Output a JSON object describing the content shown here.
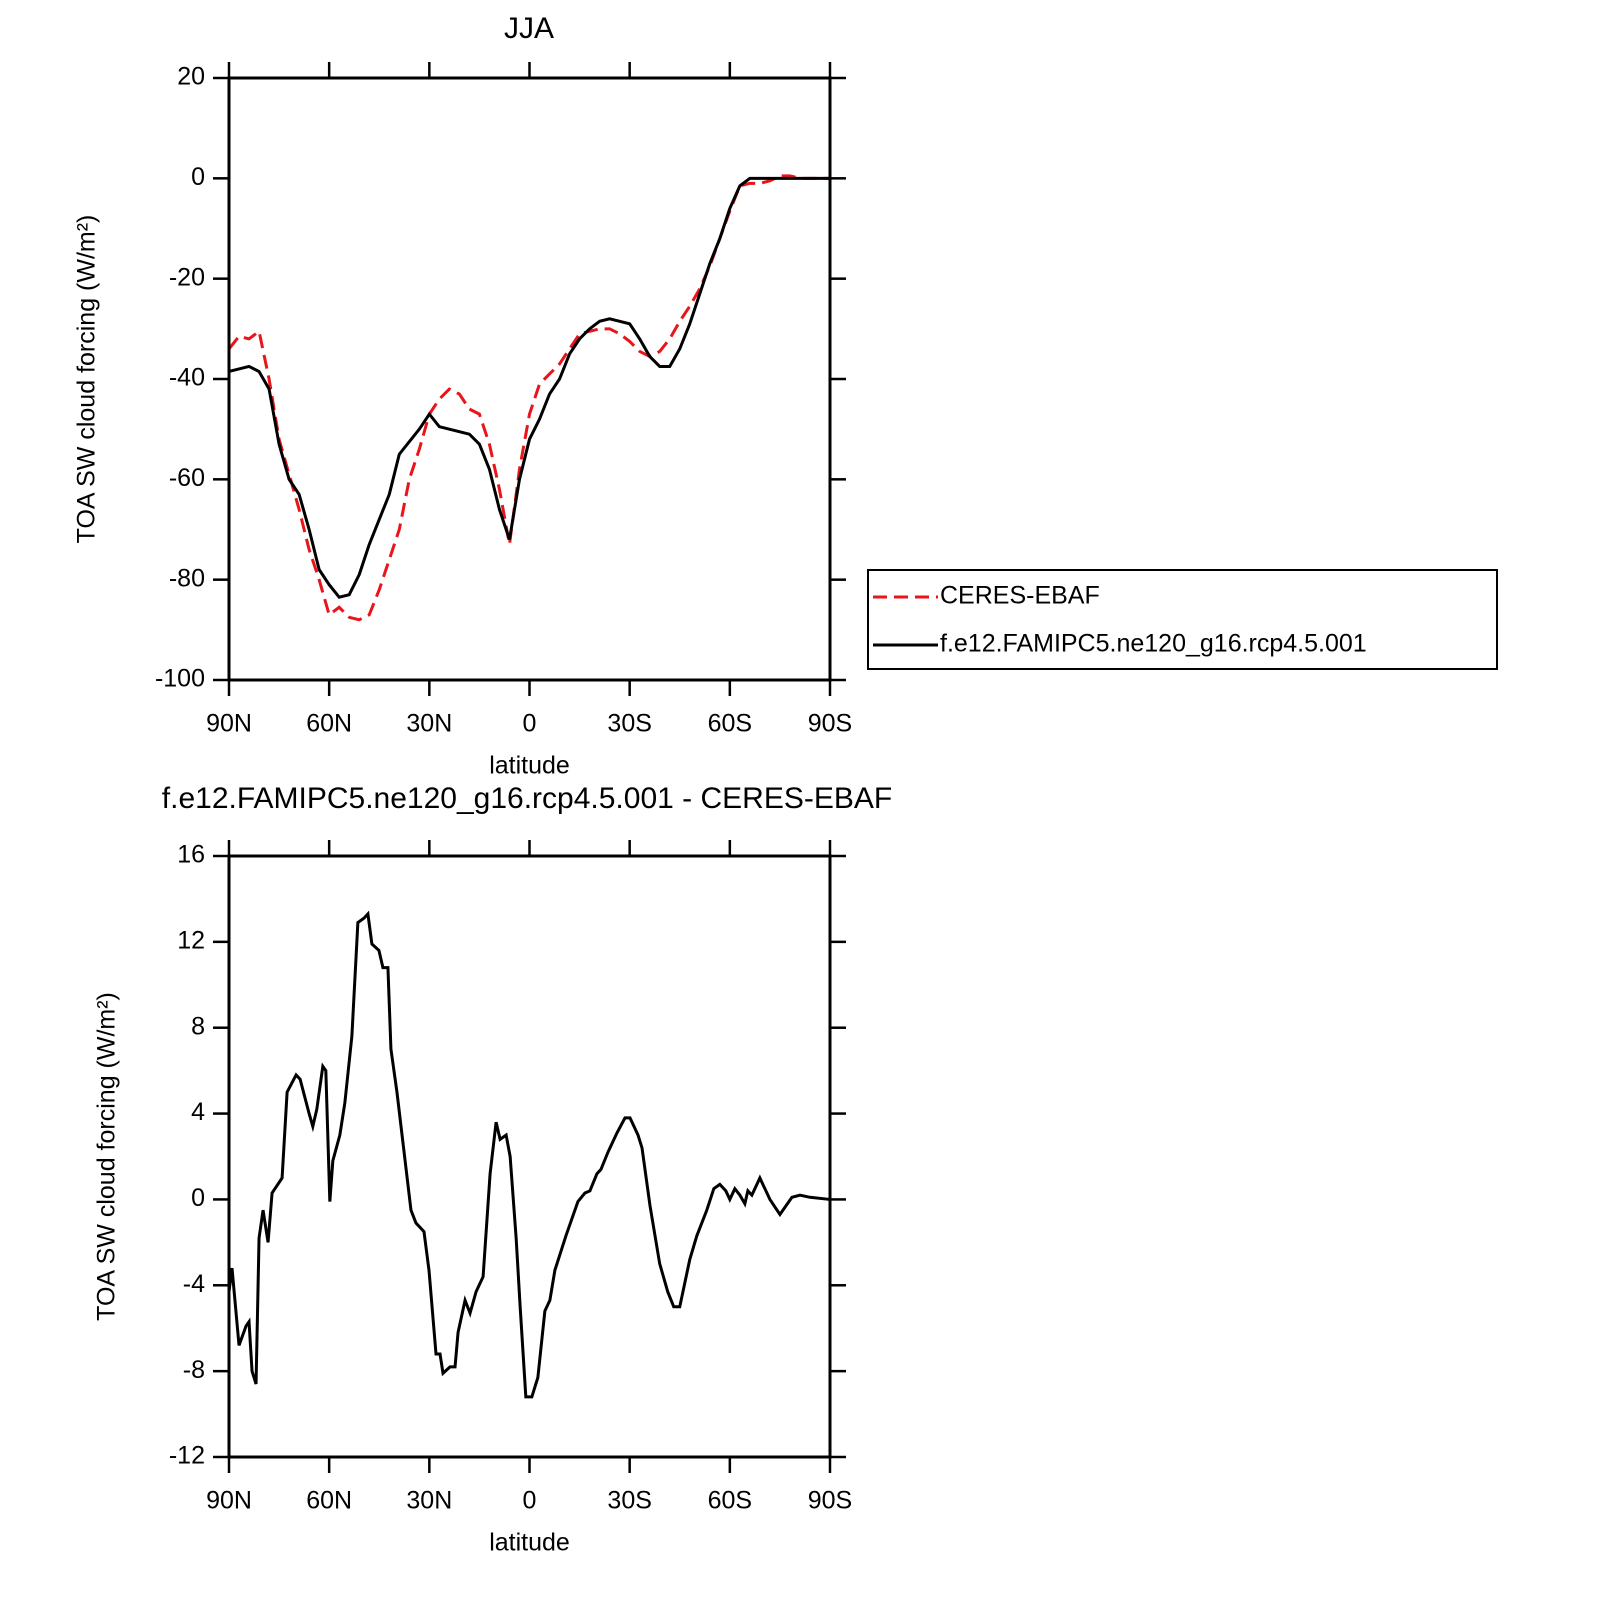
{
  "chart_data": [
    {
      "type": "line",
      "title": "JJA",
      "xlabel": "latitude",
      "ylabel": "TOA SW cloud forcing (W/m²)",
      "xlim": [
        90,
        -90
      ],
      "xticks": [
        {
          "value": 90,
          "label": "90N"
        },
        {
          "value": 60,
          "label": "60N"
        },
        {
          "value": 30,
          "label": "30N"
        },
        0,
        {
          "value": -30,
          "label": "30S"
        },
        {
          "value": -60,
          "label": "60S"
        },
        {
          "value": -90,
          "label": "90S"
        }
      ],
      "ylim": [
        -100,
        20
      ],
      "yticks": [
        -100,
        -80,
        -60,
        -40,
        -20,
        0,
        20
      ],
      "legend": "right",
      "x": [
        90,
        87,
        84,
        81,
        78,
        75,
        72,
        69,
        66,
        63,
        60,
        57,
        54,
        51,
        48,
        45,
        42,
        39,
        36,
        33,
        30,
        27,
        24,
        21,
        18,
        15,
        12,
        9,
        6,
        3,
        0,
        -3,
        -6,
        -9,
        -12,
        -15,
        -18,
        -21,
        -24,
        -27,
        -30,
        -33,
        -36,
        -39,
        -42,
        -45,
        -48,
        -51,
        -54,
        -57,
        -60,
        -63,
        -66,
        -69,
        -72,
        -75,
        -78,
        -81,
        -84,
        -87,
        -90
      ],
      "series": [
        {
          "name": "CERES-EBAF",
          "color": "#e8151b",
          "line_style": "dashed",
          "values": [
            -34,
            -31.5,
            -32,
            -30.5,
            -40,
            -52,
            -59,
            -66,
            -74,
            -80,
            -87,
            -85.5,
            -87.5,
            -88,
            -87,
            -82,
            -76,
            -70,
            -60,
            -54,
            -47,
            -44,
            -42,
            -43,
            -46,
            -47,
            -53,
            -62,
            -73,
            -58,
            -47,
            -41,
            -39,
            -37,
            -34,
            -31,
            -30.5,
            -30,
            -30,
            -31,
            -32.5,
            -34.5,
            -35.5,
            -34.5,
            -32,
            -28.5,
            -25.5,
            -22,
            -17.5,
            -12,
            -6.5,
            -1.5,
            -1,
            -1,
            -0.5,
            0.5,
            0.5,
            0,
            0,
            0,
            0
          ]
        },
        {
          "name": "f.e12.FAMIPC5.ne120_g16.rcp4.5.001",
          "color": "#000000",
          "line_style": "solid",
          "values": [
            -38.5,
            -38,
            -37.5,
            -38.5,
            -42,
            -53,
            -60,
            -63,
            -70,
            -78,
            -81,
            -83.5,
            -83,
            -79,
            -73,
            -68,
            -63,
            -55,
            -52.5,
            -50,
            -47,
            -49.5,
            -50,
            -50.5,
            -51,
            -53,
            -58,
            -66,
            -72,
            -60,
            -52,
            -48,
            -43,
            -40,
            -35,
            -32,
            -30,
            -28.5,
            -28,
            -28.5,
            -29,
            -32,
            -35.5,
            -37.5,
            -37.5,
            -34,
            -29,
            -23,
            -17,
            -12,
            -6,
            -1.5,
            0,
            0,
            0,
            0,
            0,
            0,
            0,
            0,
            0
          ]
        }
      ]
    },
    {
      "type": "line",
      "title": "f.e12.FAMIPC5.ne120_g16.rcp4.5.001 - CERES-EBAF",
      "xlabel": "latitude",
      "ylabel": "TOA SW cloud forcing (W/m²)",
      "xlim": [
        90,
        -90
      ],
      "xticks": [
        {
          "value": 90,
          "label": "90N"
        },
        {
          "value": 60,
          "label": "60N"
        },
        {
          "value": 30,
          "label": "30N"
        },
        0,
        {
          "value": -30,
          "label": "30S"
        },
        {
          "value": -60,
          "label": "60S"
        },
        {
          "value": -90,
          "label": "90S"
        }
      ],
      "ylim": [
        -12,
        16
      ],
      "yticks": [
        -12,
        -8,
        -4,
        0,
        4,
        8,
        12,
        16
      ],
      "x": [
        90,
        89.1,
        87,
        84.9,
        84,
        83.1,
        81.9,
        81,
        79.8,
        78.3,
        77.1,
        74.1,
        72.6,
        69.9,
        68.7,
        66,
        64.9,
        63.7,
        61.9,
        61,
        59.8,
        58.9,
        56.8,
        55.3,
        53.2,
        51.4,
        49.6,
        48.4,
        47.2,
        45.1,
        43.9,
        42.4,
        41.5,
        39.7,
        35.5,
        34,
        31.6,
        30.1,
        28,
        26.8,
        25.9,
        23.8,
        22.3,
        21.4,
        19.3,
        17.8,
        16,
        13.9,
        11.8,
        10,
        8.8,
        7,
        5.8,
        4,
        2.8,
        1.1,
        -0.7,
        -2.5,
        -4.6,
        -6.1,
        -7.6,
        -10.9,
        -14.5,
        -16.6,
        -18.1,
        -20.2,
        -21.4,
        -23.5,
        -26.2,
        -28.6,
        -30.1,
        -32.5,
        -33.7,
        -36.1,
        -39,
        -41.4,
        -43.2,
        -45,
        -48,
        -50.1,
        -53.1,
        -55.2,
        -57,
        -58.8,
        -60,
        -61.5,
        -63,
        -64.5,
        -65.4,
        -66.6,
        -69,
        -72,
        -75,
        -76.8,
        -78.6,
        -81,
        -84,
        -90
      ],
      "color": "#000000",
      "values": [
        -4.3,
        -3.2,
        -6.8,
        -5.9,
        -5.7,
        -8,
        -8.6,
        -1.8,
        -0.5,
        -2,
        0.3,
        1,
        5,
        5.8,
        5.6,
        4,
        3.4,
        4.2,
        6.2,
        6,
        -0.1,
        1.8,
        3,
        4.5,
        7.6,
        12.9,
        13.1,
        13.3,
        11.9,
        11.6,
        10.8,
        10.8,
        7,
        5,
        -0.5,
        -1.1,
        -1.5,
        -3.3,
        -7.2,
        -7.2,
        -8.1,
        -7.8,
        -7.8,
        -6.2,
        -4.7,
        -5.3,
        -4.3,
        -3.6,
        1.2,
        3.6,
        2.8,
        3,
        2,
        -1.8,
        -5,
        -9.2,
        -9.2,
        -8.3,
        -5.2,
        -4.7,
        -3.3,
        -1.7,
        -0.1,
        0.3,
        0.4,
        1.2,
        1.4,
        2.2,
        3.1,
        3.8,
        3.8,
        3,
        2.4,
        -0.3,
        -3,
        -4.3,
        -5,
        -5,
        -2.8,
        -1.7,
        -0.5,
        0.5,
        0.7,
        0.4,
        0,
        0.5,
        0.2,
        -0.2,
        0.4,
        0.2,
        1,
        0,
        -0.7,
        -0.3,
        0.1,
        0.2,
        0.1,
        0
      ]
    }
  ]
}
